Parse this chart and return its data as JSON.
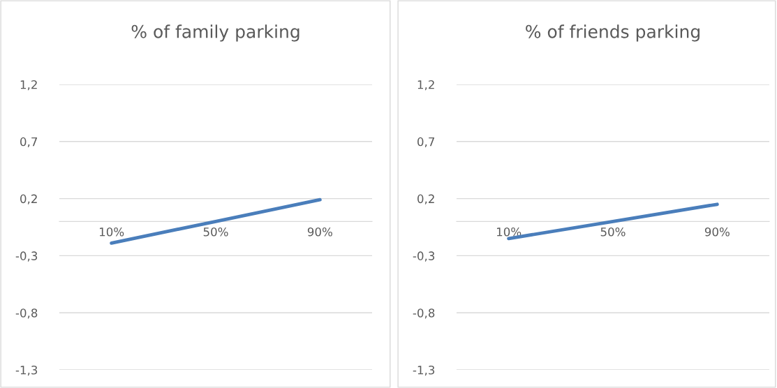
{
  "chart_data": [
    {
      "type": "line",
      "title": "% of family parking",
      "categories": [
        "10%",
        "50%",
        "90%"
      ],
      "series": [
        {
          "color": "#4a7ebb",
          "values": [
            -0.19,
            0,
            0.19
          ]
        }
      ],
      "ylim": [
        -1.3,
        1.2
      ],
      "yticks": [
        {
          "value": -1.3,
          "label": "-1,3"
        },
        {
          "value": -0.8,
          "label": "-0,8"
        },
        {
          "value": -0.3,
          "label": "-0,3"
        },
        {
          "value": 0.2,
          "label": "0,2"
        },
        {
          "value": 0.7,
          "label": "0,7"
        },
        {
          "value": 1.2,
          "label": "1,2"
        }
      ],
      "grid": "y",
      "legend": false,
      "marker": "none",
      "line_style": "solid"
    },
    {
      "type": "line",
      "title": "% of friends parking",
      "categories": [
        "10%",
        "50%",
        "90%"
      ],
      "series": [
        {
          "color": "#4a7ebb",
          "values": [
            -0.15,
            0,
            0.15
          ]
        }
      ],
      "ylim": [
        -1.3,
        1.2
      ],
      "yticks": [
        {
          "value": -1.3,
          "label": "-1,3"
        },
        {
          "value": -0.8,
          "label": "-0,8"
        },
        {
          "value": -0.3,
          "label": "-0,3"
        },
        {
          "value": 0.2,
          "label": "0,2"
        },
        {
          "value": 0.7,
          "label": "0,7"
        },
        {
          "value": 1.2,
          "label": "1,2"
        }
      ],
      "grid": "y",
      "legend": false,
      "marker": "none",
      "line_style": "solid"
    }
  ]
}
